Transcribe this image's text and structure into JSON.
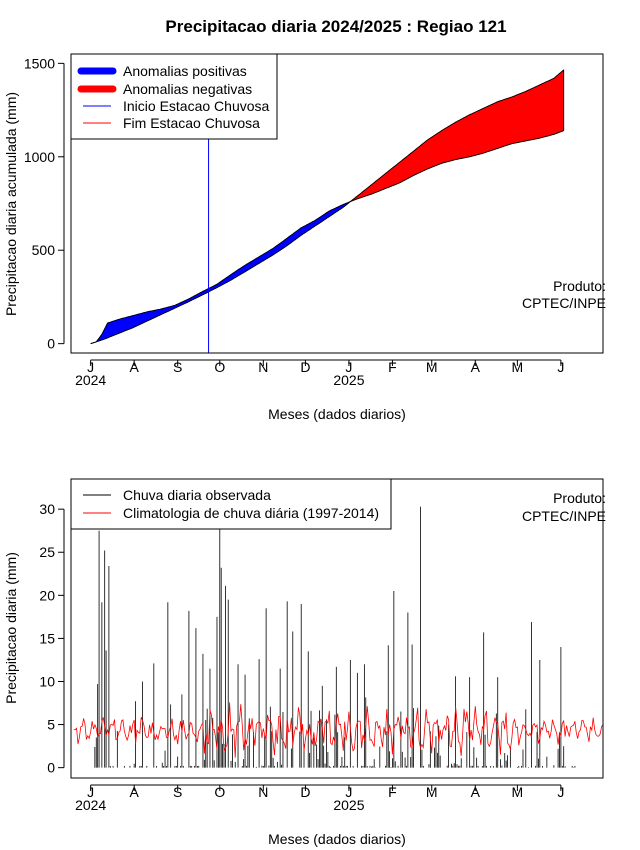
{
  "title": "Precipitacao diaria 2024/2025 : Regiao 121",
  "colors": {
    "positive_anomaly": "#0000ff",
    "negative_anomaly": "#ff0000",
    "season_start_line": "#0000ff",
    "season_end_line": "#ff0000",
    "observed_rain": "#000000",
    "climatology": "#ff0000",
    "axis": "#000000"
  },
  "chart_data": [
    {
      "type": "area",
      "ylabel": "Precipitacao diaria acumulada (mm)",
      "xlabel": "Meses (dados diarios)",
      "product_label": [
        "Produto:",
        "CPTEC/INPE"
      ],
      "x_ticks": [
        {
          "label": "J",
          "day": 0
        },
        {
          "label": "A",
          "day": 31
        },
        {
          "label": "S",
          "day": 62
        },
        {
          "label": "O",
          "day": 92
        },
        {
          "label": "N",
          "day": 123
        },
        {
          "label": "D",
          "day": 153
        },
        {
          "label": "J",
          "day": 184
        },
        {
          "label": "F",
          "day": 215
        },
        {
          "label": "M",
          "day": 243
        },
        {
          "label": "A",
          "day": 274
        },
        {
          "label": "M",
          "day": 304
        },
        {
          "label": "J",
          "day": 335
        }
      ],
      "year_labels": [
        {
          "label": "2024",
          "day": 0
        },
        {
          "label": "2025",
          "day": 184
        }
      ],
      "xlim": [
        -14,
        365
      ],
      "ylim": [
        -50,
        1550
      ],
      "y_ticks": [
        0,
        500,
        1000,
        1500
      ],
      "legend": {
        "position": "top-left",
        "entries": [
          {
            "label": "Anomalias positivas",
            "style": "thick",
            "color_key": "positive_anomaly"
          },
          {
            "label": "Anomalias negativas",
            "style": "thick",
            "color_key": "negative_anomaly"
          },
          {
            "label": "Inicio Estacao Chuvosa",
            "style": "thin",
            "color_key": "season_start_line"
          },
          {
            "label": "Fim Estacao Chuvosa",
            "style": "thin",
            "color_key": "season_end_line"
          }
        ]
      },
      "rainy_season_start_day": 84,
      "observed_accumulated": {
        "days": [
          0,
          4,
          8,
          12,
          20,
          30,
          40,
          50,
          60,
          70,
          80,
          90,
          100,
          110,
          120,
          130,
          140,
          150,
          160,
          170,
          180,
          190,
          200,
          210,
          220,
          230,
          240,
          250,
          260,
          270,
          280,
          290,
          300,
          310,
          320,
          330,
          337
        ],
        "values": [
          0,
          10,
          50,
          110,
          130,
          150,
          170,
          185,
          205,
          240,
          280,
          318,
          370,
          420,
          465,
          510,
          565,
          620,
          660,
          710,
          745,
          775,
          800,
          830,
          860,
          900,
          935,
          965,
          985,
          1000,
          1020,
          1045,
          1070,
          1085,
          1100,
          1120,
          1140
        ]
      },
      "climatology_accumulated": {
        "days": [
          0,
          10,
          20,
          30,
          40,
          50,
          60,
          70,
          80,
          90,
          100,
          110,
          120,
          130,
          140,
          150,
          160,
          170,
          180,
          190,
          200,
          210,
          220,
          230,
          240,
          250,
          260,
          270,
          280,
          290,
          300,
          310,
          320,
          330,
          337
        ],
        "values": [
          0,
          25,
          55,
          85,
          120,
          155,
          190,
          225,
          262,
          300,
          340,
          385,
          430,
          475,
          525,
          580,
          630,
          680,
          730,
          790,
          850,
          910,
          970,
          1030,
          1090,
          1140,
          1185,
          1225,
          1260,
          1295,
          1320,
          1350,
          1385,
          1420,
          1465
        ]
      }
    },
    {
      "type": "bar",
      "ylabel": "Precipitacao diaria (mm)",
      "xlabel": "Meses (dados diarios)",
      "product_label": [
        "Produto:",
        "CPTEC/INPE"
      ],
      "x_ticks": [
        {
          "label": "J",
          "day": 0
        },
        {
          "label": "A",
          "day": 31
        },
        {
          "label": "S",
          "day": 62
        },
        {
          "label": "O",
          "day": 92
        },
        {
          "label": "N",
          "day": 123
        },
        {
          "label": "D",
          "day": 153
        },
        {
          "label": "J",
          "day": 184
        },
        {
          "label": "F",
          "day": 215
        },
        {
          "label": "M",
          "day": 243
        },
        {
          "label": "A",
          "day": 274
        },
        {
          "label": "M",
          "day": 304
        },
        {
          "label": "J",
          "day": 335
        }
      ],
      "year_labels": [
        {
          "label": "2024",
          "day": 0
        },
        {
          "label": "2025",
          "day": 184
        }
      ],
      "xlim": [
        -14,
        365
      ],
      "ylim": [
        -1.2,
        33.5
      ],
      "y_ticks": [
        0,
        5,
        10,
        15,
        20,
        25,
        30
      ],
      "legend": {
        "position": "top-left",
        "entries": [
          {
            "label": "Chuva diaria observada",
            "style": "thin",
            "color_key": "observed_rain"
          },
          {
            "label": "Climatologia de chuva diária (1997-2014)",
            "style": "thin",
            "color_key": "climatology"
          }
        ]
      },
      "observed_peaks": {
        "days": [
          5,
          6,
          8,
          10,
          11,
          13,
          32,
          37,
          45,
          55,
          65,
          70,
          75,
          80,
          85,
          90,
          92,
          93,
          96,
          98,
          105,
          110,
          120,
          125,
          135,
          140,
          144,
          150,
          155,
          165,
          175,
          185,
          190,
          195,
          212,
          216,
          226,
          229,
          235,
          260,
          270,
          280,
          290,
          314,
          320,
          335
        ],
        "values": [
          9.7,
          27.5,
          19.2,
          25.2,
          13.6,
          23.4,
          7.7,
          10.0,
          12.1,
          19.2,
          8.5,
          18.2,
          16.2,
          13.2,
          11.5,
          17.5,
          28.5,
          23.2,
          21.1,
          19.5,
          12.0,
          10.8,
          12.6,
          18.5,
          11.5,
          19.3,
          15.8,
          19.0,
          13.5,
          9.5,
          11.7,
          12.5,
          11.0,
          12.0,
          14.2,
          20.5,
          18.0,
          14.3,
          30.3,
          10.6,
          10.5,
          15.7,
          10.5,
          16.9,
          12.5,
          14.0
        ]
      },
      "observed_noise_seed": 7,
      "climatology_mean": 4.3,
      "climatology_amplitude": 2.4
    }
  ]
}
